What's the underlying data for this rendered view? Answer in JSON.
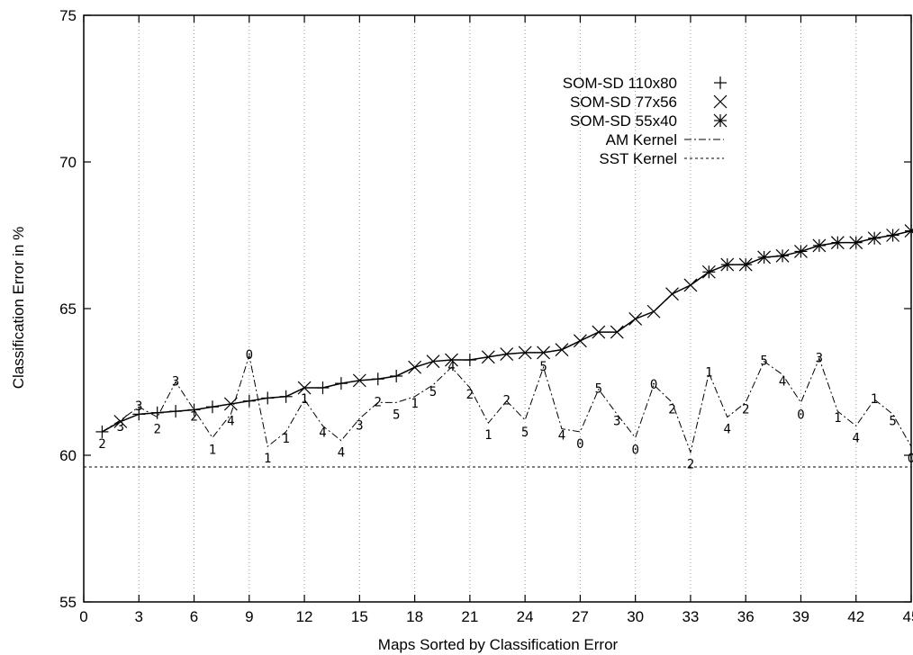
{
  "chart_data": {
    "type": "line",
    "xlabel": "Maps Sorted by Classification Error",
    "ylabel": "Classification Error in %",
    "xlim": [
      0,
      45
    ],
    "ylim": [
      55,
      75
    ],
    "x_ticks": [
      0,
      3,
      6,
      9,
      12,
      15,
      18,
      21,
      24,
      27,
      30,
      33,
      36,
      39,
      42,
      45
    ],
    "y_ticks": [
      55,
      60,
      65,
      70,
      75
    ],
    "grid": "vertical dotted lines at x ticks",
    "legend_position": "top-right",
    "legend": [
      {
        "label": "SOM-SD 110x80",
        "marker": "plus"
      },
      {
        "label": "SOM-SD 77x56",
        "marker": "cross"
      },
      {
        "label": "SOM-SD 55x40",
        "marker": "star"
      },
      {
        "label": "AM Kernel",
        "marker": "dash-dot"
      },
      {
        "label": "SST Kernel",
        "marker": "dotted"
      }
    ],
    "som_x": [
      1,
      2,
      3,
      4,
      5,
      6,
      7,
      8,
      9,
      10,
      11,
      12,
      13,
      14,
      15,
      16,
      17,
      18,
      19,
      20,
      21,
      22,
      23,
      24,
      25,
      26,
      27,
      28,
      29,
      30,
      31,
      32,
      33,
      34,
      35,
      36,
      37,
      38,
      39,
      40,
      41,
      42,
      43,
      44,
      45
    ],
    "som_y": [
      60.8,
      61.15,
      61.4,
      61.45,
      61.5,
      61.55,
      61.65,
      61.75,
      61.85,
      61.95,
      62.0,
      62.3,
      62.3,
      62.45,
      62.55,
      62.6,
      62.7,
      63.0,
      63.2,
      63.25,
      63.25,
      63.35,
      63.45,
      63.5,
      63.5,
      63.6,
      63.9,
      64.2,
      64.2,
      64.65,
      64.9,
      65.5,
      65.8,
      66.25,
      66.5,
      66.5,
      66.75,
      66.8,
      66.95,
      67.15,
      67.25,
      67.25,
      67.4,
      67.5,
      67.65
    ],
    "som_markers": [
      "plus",
      "cross",
      "plus",
      "plus",
      "plus",
      "plus",
      "plus",
      "cross",
      "plus",
      "plus",
      "plus",
      "cross",
      "plus",
      "plus",
      "cross",
      "plus",
      "plus",
      "cross",
      "cross",
      "cross",
      "plus",
      "cross",
      "cross",
      "cross",
      "cross",
      "cross",
      "cross",
      "cross",
      "cross",
      "cross",
      "cross",
      "cross",
      "cross",
      "star",
      "star",
      "star",
      "star",
      "star",
      "star",
      "star",
      "star",
      "star",
      "star",
      "star",
      "star"
    ],
    "am_kernel": {
      "x": [
        1,
        2,
        3,
        4,
        5,
        6,
        7,
        8,
        9,
        10,
        11,
        12,
        13,
        14,
        15,
        16,
        17,
        18,
        19,
        20,
        21,
        22,
        23,
        24,
        25,
        26,
        27,
        28,
        29,
        30,
        31,
        32,
        33,
        34,
        35,
        36,
        37,
        38,
        39,
        40,
        41,
        42,
        43,
        44,
        45
      ],
      "y": [
        60.8,
        61.2,
        61.65,
        61.3,
        62.5,
        61.55,
        60.6,
        61.4,
        63.4,
        60.3,
        60.8,
        61.9,
        61.0,
        60.5,
        61.25,
        61.8,
        61.8,
        62.0,
        62.4,
        63.0,
        62.3,
        61.1,
        61.85,
        61.2,
        63.0,
        60.9,
        60.8,
        62.25,
        61.4,
        60.6,
        62.4,
        61.8,
        60.1,
        62.8,
        61.3,
        61.8,
        63.2,
        62.75,
        61.8,
        63.3,
        61.5,
        61.0,
        61.9,
        61.4,
        60.3
      ],
      "labels": [
        "2",
        "3",
        "3",
        "2",
        "3",
        "2",
        "1",
        "4",
        "0",
        "1",
        "1",
        "1",
        "4",
        "4",
        "3",
        "2",
        "5",
        "1",
        "5",
        "4",
        "2",
        "1",
        "2",
        "5",
        "5",
        "4",
        "0",
        "5",
        "3",
        "0",
        "0",
        "2",
        "2",
        "1",
        "4",
        "2",
        "5",
        "4",
        "0",
        "3",
        "1",
        "4",
        "1",
        "5",
        "0"
      ]
    },
    "sst_kernel": {
      "y": 59.6
    }
  }
}
